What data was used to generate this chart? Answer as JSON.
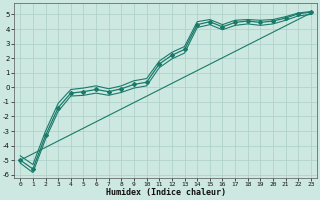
{
  "title": "",
  "xlabel": "Humidex (Indice chaleur)",
  "ylabel": "",
  "background_color": "#cce8e0",
  "grid_color": "#aacfc8",
  "line_color": "#1a7a6a",
  "xlim": [
    -0.5,
    23.5
  ],
  "ylim": [
    -6.2,
    5.8
  ],
  "yticks": [
    -6,
    -5,
    -4,
    -3,
    -2,
    -1,
    0,
    1,
    2,
    3,
    4,
    5
  ],
  "xticks": [
    0,
    1,
    2,
    3,
    4,
    5,
    6,
    7,
    8,
    9,
    10,
    11,
    12,
    13,
    14,
    15,
    16,
    17,
    18,
    19,
    20,
    21,
    22,
    23
  ],
  "series": [
    {
      "x": [
        0,
        1,
        2,
        3,
        4,
        5,
        6,
        7,
        8,
        9,
        10,
        11,
        12,
        13,
        14,
        15,
        16,
        17,
        18,
        19,
        20,
        21,
        22,
        23
      ],
      "y": [
        -5.0,
        -5.6,
        -3.3,
        -1.4,
        -0.4,
        -0.3,
        -0.15,
        -0.3,
        -0.1,
        0.2,
        0.35,
        1.6,
        2.2,
        2.6,
        4.3,
        4.5,
        4.15,
        4.45,
        4.55,
        4.45,
        4.55,
        4.75,
        5.05,
        5.15
      ],
      "marker": "D",
      "markersize": 2.0,
      "linewidth": 0.9
    },
    {
      "x": [
        0,
        1,
        2,
        3,
        4,
        5,
        6,
        7,
        8,
        9,
        10,
        11,
        12,
        13,
        14,
        15,
        16,
        17,
        18,
        19,
        20,
        21,
        22,
        23
      ],
      "y": [
        -4.7,
        -5.3,
        -3.0,
        -1.1,
        -0.15,
        -0.05,
        0.1,
        -0.1,
        0.1,
        0.45,
        0.6,
        1.8,
        2.4,
        2.8,
        4.5,
        4.65,
        4.3,
        4.6,
        4.65,
        4.6,
        4.65,
        4.85,
        5.1,
        5.2
      ],
      "marker": null,
      "markersize": 0,
      "linewidth": 0.8
    },
    {
      "x": [
        0,
        1,
        2,
        3,
        4,
        5,
        6,
        7,
        8,
        9,
        10,
        11,
        12,
        13,
        14,
        15,
        16,
        17,
        18,
        19,
        20,
        21,
        22,
        23
      ],
      "y": [
        -5.2,
        -5.85,
        -3.55,
        -1.65,
        -0.6,
        -0.55,
        -0.4,
        -0.55,
        -0.35,
        -0.05,
        0.1,
        1.35,
        1.95,
        2.35,
        4.1,
        4.3,
        3.95,
        4.25,
        4.35,
        4.25,
        4.35,
        4.6,
        4.9,
        5.0
      ],
      "marker": null,
      "markersize": 0,
      "linewidth": 0.8
    },
    {
      "x": [
        0,
        23
      ],
      "y": [
        -5.0,
        5.1
      ],
      "marker": null,
      "markersize": 0,
      "linewidth": 0.8
    }
  ]
}
